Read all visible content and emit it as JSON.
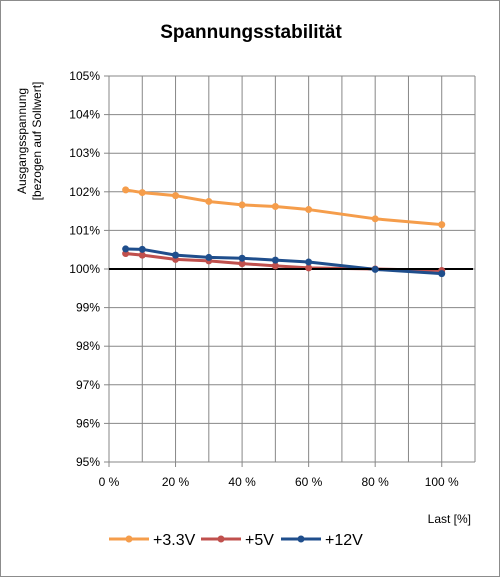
{
  "chart_data": {
    "type": "line",
    "title": "Spannungsstabilität",
    "ylabel_line1": "Ausgangsspannung",
    "ylabel_line2": "[bezogen auf Sollwert]",
    "xlabel": "Last [%]",
    "x_ticks": [
      "0 %",
      "20 %",
      "40 %",
      "60 %",
      "80 %",
      "100 %"
    ],
    "y_ticks": [
      "95%",
      "96%",
      "97%",
      "98%",
      "99%",
      "100%",
      "101%",
      "102%",
      "103%",
      "104%",
      "105%"
    ],
    "xlim": [
      0,
      110
    ],
    "ylim": [
      95,
      105
    ],
    "grid": true,
    "legend_position": "bottom",
    "reference_line": 100,
    "series": [
      {
        "name": "+3.3V",
        "color": "#f59d4b",
        "x": [
          5,
          10,
          20,
          30,
          40,
          50,
          60,
          80,
          100
        ],
        "y": [
          102.05,
          101.98,
          101.9,
          101.75,
          101.66,
          101.62,
          101.54,
          101.3,
          101.15
        ]
      },
      {
        "name": "+5V",
        "color": "#c0504d",
        "x": [
          5,
          10,
          20,
          30,
          40,
          50,
          60,
          80,
          100
        ],
        "y": [
          100.4,
          100.36,
          100.25,
          100.21,
          100.14,
          100.08,
          100.03,
          100.0,
          99.96
        ]
      },
      {
        "name": "+12V",
        "color": "#1f4e8c",
        "x": [
          5,
          10,
          20,
          30,
          40,
          50,
          60,
          80,
          100
        ],
        "y": [
          100.52,
          100.51,
          100.36,
          100.3,
          100.28,
          100.23,
          100.18,
          99.99,
          99.88
        ]
      }
    ]
  }
}
